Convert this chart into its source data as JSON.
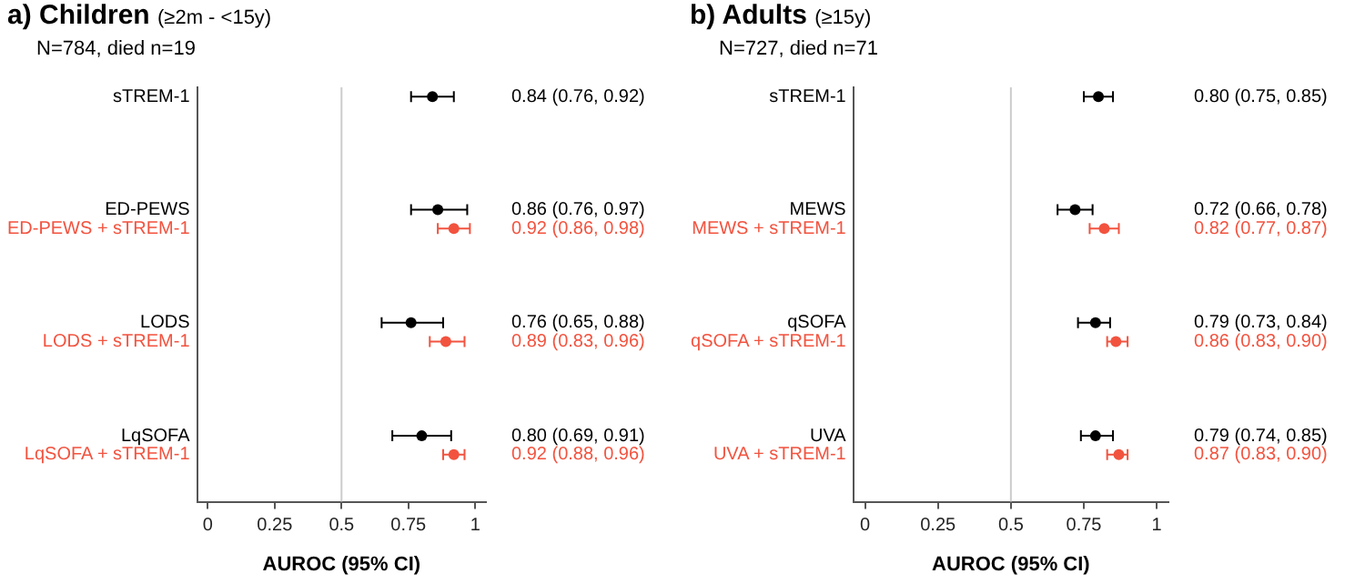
{
  "chart_data": [
    {
      "type": "scatter",
      "orientation": "horizontal",
      "title": "a) Children (≥2m - <15y)",
      "subtitle": "N=784, died n=19",
      "xlabel": "AUROC (95% CI)",
      "categories": [
        "sTREM-1",
        null,
        null,
        null,
        null,
        null,
        "ED-PEWS",
        "ED-PEWS + sTREM-1",
        null,
        null,
        null,
        null,
        "LODS",
        "LODS + sTREM-1",
        null,
        null,
        null,
        null,
        "LqSOFA",
        "LqSOFA + sTREM-1",
        null,
        null
      ],
      "values": [
        0.84,
        null,
        null,
        null,
        null,
        null,
        0.86,
        0.92,
        null,
        null,
        null,
        null,
        0.76,
        0.89,
        null,
        null,
        null,
        null,
        0.8,
        0.92,
        null,
        null
      ],
      "errors": [
        [
          0.76,
          0.92
        ],
        null,
        null,
        null,
        null,
        null,
        [
          0.76,
          0.97
        ],
        [
          0.86,
          0.98
        ],
        null,
        null,
        null,
        null,
        [
          0.65,
          0.88
        ],
        [
          0.83,
          0.96
        ],
        null,
        null,
        null,
        null,
        [
          0.69,
          0.91
        ],
        [
          0.88,
          0.96
        ],
        null,
        null
      ],
      "value_labels": [
        "0.84 (0.76, 0.92)",
        null,
        null,
        null,
        null,
        null,
        "0.86 (0.76, 0.97)",
        "0.92 (0.86, 0.98)",
        null,
        null,
        null,
        null,
        "0.76 (0.65, 0.88)",
        "0.89 (0.83, 0.96)",
        null,
        null,
        null,
        null,
        "0.80 (0.69, 0.91)",
        "0.92 (0.88, 0.96)",
        null,
        null
      ],
      "colors": [
        "#000000",
        null,
        null,
        null,
        null,
        null,
        "#000000",
        "#f2533f",
        null,
        null,
        null,
        null,
        "#000000",
        "#f2533f",
        null,
        null,
        null,
        null,
        "#000000",
        "#f2533f",
        null,
        null
      ],
      "xlim": [
        -0.04,
        1.04
      ],
      "xticks": [
        0,
        0.25,
        0.5,
        0.75,
        1
      ],
      "ref_lines": [
        {
          "axis": "x",
          "value": 0.5,
          "color": "#cccccc"
        }
      ],
      "grid": false,
      "legend": false,
      "marker": "circle"
    },
    {
      "type": "scatter",
      "orientation": "horizontal",
      "title": "b) Adults (≥15y)",
      "subtitle": "N=727, died n=71",
      "xlabel": "AUROC (95% CI)",
      "categories": [
        "sTREM-1",
        null,
        null,
        null,
        null,
        null,
        "MEWS",
        "MEWS + sTREM-1",
        null,
        null,
        null,
        null,
        "qSOFA",
        "qSOFA + sTREM-1",
        null,
        null,
        null,
        null,
        "UVA",
        "UVA + sTREM-1",
        null,
        null
      ],
      "values": [
        0.8,
        null,
        null,
        null,
        null,
        null,
        0.72,
        0.82,
        null,
        null,
        null,
        null,
        0.79,
        0.86,
        null,
        null,
        null,
        null,
        0.79,
        0.87,
        null,
        null
      ],
      "errors": [
        [
          0.75,
          0.85
        ],
        null,
        null,
        null,
        null,
        null,
        [
          0.66,
          0.78
        ],
        [
          0.77,
          0.87
        ],
        null,
        null,
        null,
        null,
        [
          0.73,
          0.84
        ],
        [
          0.83,
          0.9
        ],
        null,
        null,
        null,
        null,
        [
          0.74,
          0.85
        ],
        [
          0.83,
          0.9
        ],
        null,
        null
      ],
      "value_labels": [
        "0.80 (0.75, 0.85)",
        null,
        null,
        null,
        null,
        null,
        "0.72 (0.66, 0.78)",
        "0.82 (0.77, 0.87)",
        null,
        null,
        null,
        null,
        "0.79 (0.73, 0.84)",
        "0.86 (0.83, 0.90)",
        null,
        null,
        null,
        null,
        "0.79 (0.74, 0.85)",
        "0.87 (0.83, 0.90)",
        null,
        null
      ],
      "colors": [
        "#000000",
        null,
        null,
        null,
        null,
        null,
        "#000000",
        "#f2533f",
        null,
        null,
        null,
        null,
        "#000000",
        "#f2533f",
        null,
        null,
        null,
        null,
        "#000000",
        "#f2533f",
        null,
        null
      ],
      "xlim": [
        -0.04,
        1.04
      ],
      "xticks": [
        0,
        0.25,
        0.5,
        0.75,
        1
      ],
      "ref_lines": [
        {
          "axis": "x",
          "value": 0.5,
          "color": "#cccccc"
        }
      ],
      "grid": false,
      "legend": false,
      "marker": "circle"
    }
  ]
}
